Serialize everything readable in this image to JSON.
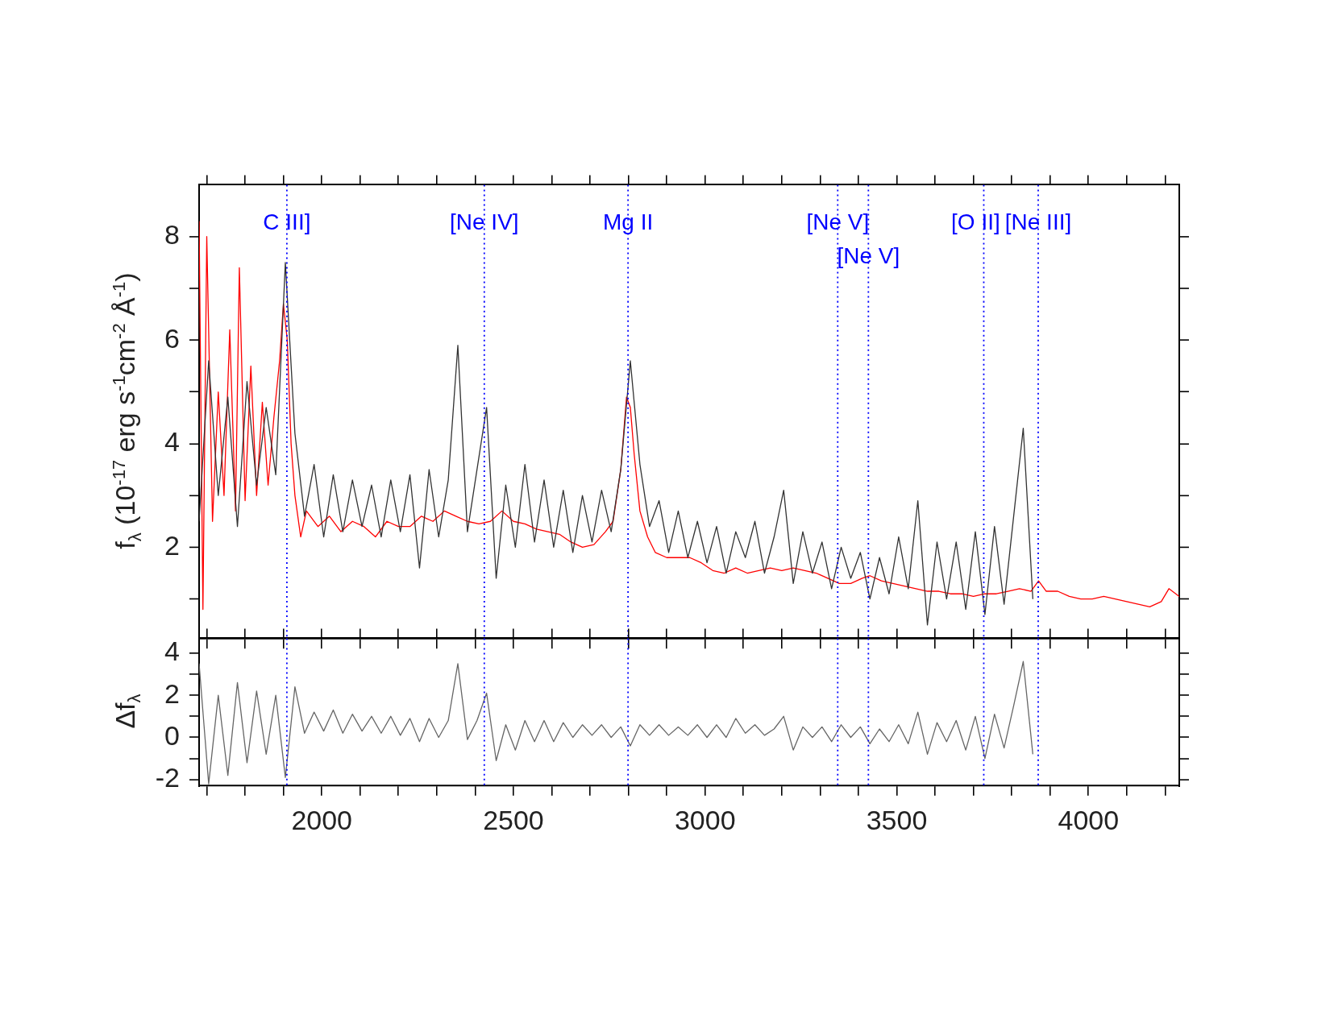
{
  "chart_data": [
    {
      "type": "line",
      "ylabel": "f$_{λ}$ (10$^{-17}$ erg s$^{-1}$cm$^{-2}$ Å$^{-1}$)",
      "xlim": [
        1680,
        4237
      ],
      "ylim": [
        0.23,
        9
      ],
      "xticks": [
        {
          "value": 1700,
          "label": null
        },
        {
          "value": 1800,
          "label": null
        },
        {
          "value": 1900,
          "label": null
        },
        2000,
        {
          "value": 2100,
          "label": null
        },
        {
          "value": 2200,
          "label": null
        },
        {
          "value": 2300,
          "label": null
        },
        {
          "value": 2400,
          "label": null
        },
        2500,
        {
          "value": 2600,
          "label": null
        },
        {
          "value": 2700,
          "label": null
        },
        {
          "value": 2800,
          "label": null
        },
        {
          "value": 2900,
          "label": null
        },
        3000,
        {
          "value": 3100,
          "label": null
        },
        {
          "value": 3200,
          "label": null
        },
        {
          "value": 3300,
          "label": null
        },
        {
          "value": 3400,
          "label": null
        },
        3500,
        {
          "value": 3600,
          "label": null
        },
        {
          "value": 3700,
          "label": null
        },
        {
          "value": 3800,
          "label": null
        },
        {
          "value": 3900,
          "label": null
        },
        4000,
        {
          "value": 4100,
          "label": null
        },
        {
          "value": 4200,
          "label": null
        }
      ],
      "yticks": [
        {
          "value": 1,
          "label": null
        },
        2,
        {
          "value": 3,
          "label": null
        },
        4,
        {
          "value": 5,
          "label": null
        },
        6,
        {
          "value": 7,
          "label": null
        },
        8
      ],
      "tick_labels": "y",
      "line_style": "solid",
      "series": [
        {
          "color": "#333333",
          "x": [
            1680,
            1705,
            1730,
            1755,
            1780,
            1805,
            1830,
            1855,
            1880,
            1905,
            1930,
            1955,
            1980,
            2005,
            2030,
            2055,
            2080,
            2105,
            2130,
            2155,
            2180,
            2205,
            2230,
            2255,
            2280,
            2305,
            2330,
            2355,
            2380,
            2405,
            2430,
            2455,
            2480,
            2505,
            2530,
            2555,
            2580,
            2605,
            2630,
            2655,
            2680,
            2705,
            2730,
            2755,
            2780,
            2805,
            2830,
            2855,
            2880,
            2905,
            2930,
            2955,
            2980,
            3005,
            3030,
            3055,
            3080,
            3105,
            3130,
            3155,
            3180,
            3205,
            3230,
            3255,
            3280,
            3305,
            3330,
            3355,
            3380,
            3405,
            3430,
            3455,
            3480,
            3505,
            3530,
            3555,
            3580,
            3605,
            3630,
            3655,
            3680,
            3705,
            3730,
            3755,
            3780,
            3805,
            3830,
            3855
          ],
          "values": [
            2.5,
            5.6,
            3.0,
            4.9,
            2.4,
            5.2,
            3.2,
            4.7,
            3.4,
            7.5,
            4.2,
            2.6,
            3.6,
            2.2,
            3.4,
            2.3,
            3.3,
            2.4,
            3.2,
            2.2,
            3.3,
            2.3,
            3.4,
            1.6,
            3.5,
            2.2,
            3.3,
            5.9,
            2.3,
            3.5,
            4.7,
            1.4,
            3.2,
            2.0,
            3.6,
            2.1,
            3.3,
            2.0,
            3.1,
            1.9,
            3.0,
            2.1,
            3.1,
            2.3,
            3.5,
            5.6,
            3.6,
            2.4,
            2.9,
            1.9,
            2.7,
            1.8,
            2.5,
            1.7,
            2.4,
            1.5,
            2.3,
            1.8,
            2.5,
            1.5,
            2.2,
            3.1,
            1.3,
            2.3,
            1.5,
            2.1,
            1.2,
            2.0,
            1.4,
            1.9,
            1.0,
            1.8,
            1.1,
            2.2,
            1.2,
            2.9,
            0.5,
            2.1,
            1.0,
            2.1,
            0.8,
            2.3,
            0.7,
            2.4,
            0.9,
            2.6,
            4.3,
            1.0
          ]
        },
        {
          "color": "#ff0000",
          "x": [
            1680,
            1690,
            1700,
            1715,
            1730,
            1745,
            1760,
            1775,
            1785,
            1800,
            1815,
            1830,
            1845,
            1860,
            1875,
            1890,
            1900,
            1910,
            1920,
            1930,
            1945,
            1960,
            1990,
            2020,
            2050,
            2080,
            2110,
            2140,
            2170,
            2200,
            2230,
            2260,
            2290,
            2320,
            2350,
            2380,
            2410,
            2440,
            2470,
            2500,
            2530,
            2560,
            2590,
            2620,
            2650,
            2680,
            2710,
            2740,
            2760,
            2780,
            2795,
            2805,
            2815,
            2830,
            2850,
            2870,
            2900,
            2930,
            2960,
            2990,
            3020,
            3050,
            3080,
            3110,
            3140,
            3170,
            3200,
            3230,
            3260,
            3290,
            3320,
            3350,
            3380,
            3410,
            3430,
            3460,
            3490,
            3520,
            3550,
            3580,
            3610,
            3640,
            3670,
            3700,
            3730,
            3760,
            3790,
            3820,
            3850,
            3870,
            3890,
            3920,
            3950,
            3980,
            4010,
            4040,
            4070,
            4100,
            4130,
            4160,
            4190,
            4210,
            4237
          ],
          "values": [
            8.3,
            0.8,
            8.0,
            2.5,
            5.0,
            3.0,
            6.2,
            2.7,
            7.4,
            2.9,
            5.5,
            3.0,
            4.8,
            3.2,
            4.5,
            5.6,
            6.7,
            6.0,
            4.0,
            3.0,
            2.2,
            2.7,
            2.4,
            2.6,
            2.3,
            2.5,
            2.4,
            2.2,
            2.5,
            2.4,
            2.4,
            2.6,
            2.5,
            2.7,
            2.6,
            2.5,
            2.45,
            2.5,
            2.7,
            2.5,
            2.45,
            2.35,
            2.3,
            2.25,
            2.1,
            2.0,
            2.05,
            2.3,
            2.5,
            3.5,
            4.9,
            4.7,
            3.8,
            2.7,
            2.2,
            1.9,
            1.8,
            1.8,
            1.8,
            1.7,
            1.55,
            1.5,
            1.6,
            1.5,
            1.55,
            1.6,
            1.55,
            1.6,
            1.55,
            1.5,
            1.4,
            1.3,
            1.3,
            1.4,
            1.45,
            1.35,
            1.3,
            1.25,
            1.2,
            1.15,
            1.15,
            1.1,
            1.1,
            1.05,
            1.1,
            1.1,
            1.15,
            1.2,
            1.15,
            1.35,
            1.15,
            1.15,
            1.05,
            1.0,
            1.0,
            1.05,
            1.0,
            0.95,
            0.9,
            0.85,
            0.95,
            1.2,
            1.05
          ]
        }
      ],
      "ref_lines": [
        {
          "axis": "x",
          "value": 1909,
          "label": "C III]",
          "color": "#0000ff",
          "line_style": "dotted"
        },
        {
          "axis": "x",
          "value": 2424,
          "label": "[Ne IV]",
          "color": "#0000ff",
          "line_style": "dotted"
        },
        {
          "axis": "x",
          "value": 2799,
          "label": "Mg II",
          "color": "#0000ff",
          "line_style": "dotted"
        },
        {
          "axis": "x",
          "value": 3346,
          "label": "[Ne V]",
          "color": "#0000ff",
          "line_style": "dotted"
        },
        {
          "axis": "x",
          "value": 3426,
          "label": "[Ne V]",
          "color": "#0000ff",
          "line_style": "dotted"
        },
        {
          "axis": "x",
          "value": 3727,
          "label": "[O II]",
          "color": "#0000ff",
          "line_style": "dotted"
        },
        {
          "axis": "x",
          "value": 3869,
          "label": "[Ne III]",
          "color": "#0000ff",
          "line_style": "dotted"
        }
      ]
    },
    {
      "type": "line",
      "ylabel": "Δf$_{λ}$",
      "xlim": [
        1680,
        4237
      ],
      "ylim": [
        -2.3,
        4.7
      ],
      "xticks": [
        {
          "value": 1700,
          "label": null
        },
        {
          "value": 1800,
          "label": null
        },
        {
          "value": 1900,
          "label": null
        },
        2000,
        {
          "value": 2100,
          "label": null
        },
        {
          "value": 2200,
          "label": null
        },
        {
          "value": 2300,
          "label": null
        },
        {
          "value": 2400,
          "label": null
        },
        2500,
        {
          "value": 2600,
          "label": null
        },
        {
          "value": 2700,
          "label": null
        },
        {
          "value": 2800,
          "label": null
        },
        {
          "value": 2900,
          "label": null
        },
        3000,
        {
          "value": 3100,
          "label": null
        },
        {
          "value": 3200,
          "label": null
        },
        {
          "value": 3300,
          "label": null
        },
        {
          "value": 3400,
          "label": null
        },
        3500,
        {
          "value": 3600,
          "label": null
        },
        {
          "value": 3700,
          "label": null
        },
        {
          "value": 3800,
          "label": null
        },
        {
          "value": 3900,
          "label": null
        },
        4000,
        {
          "value": 4100,
          "label": null
        },
        {
          "value": 4200,
          "label": null
        }
      ],
      "yticks": [
        -2,
        {
          "value": -1,
          "label": null
        },
        0,
        {
          "value": 1,
          "label": null
        },
        2,
        {
          "value": 3,
          "label": null
        },
        4
      ],
      "line_style": "solid",
      "series": [
        {
          "color": "#666666",
          "x": [
            1680,
            1705,
            1730,
            1755,
            1780,
            1805,
            1830,
            1855,
            1880,
            1905,
            1930,
            1955,
            1980,
            2005,
            2030,
            2055,
            2080,
            2105,
            2130,
            2155,
            2180,
            2205,
            2230,
            2255,
            2280,
            2305,
            2330,
            2355,
            2380,
            2405,
            2430,
            2455,
            2480,
            2505,
            2530,
            2555,
            2580,
            2605,
            2630,
            2655,
            2680,
            2705,
            2730,
            2755,
            2780,
            2805,
            2830,
            2855,
            2880,
            2905,
            2930,
            2955,
            2980,
            3005,
            3030,
            3055,
            3080,
            3105,
            3130,
            3155,
            3180,
            3205,
            3230,
            3255,
            3280,
            3305,
            3330,
            3355,
            3380,
            3405,
            3430,
            3455,
            3480,
            3505,
            3530,
            3555,
            3580,
            3605,
            3630,
            3655,
            3680,
            3705,
            3730,
            3755,
            3780,
            3805,
            3830,
            3855
          ],
          "values": [
            3.5,
            -2.2,
            2.0,
            -1.8,
            2.6,
            -1.2,
            2.2,
            -0.8,
            2.0,
            -1.9,
            2.4,
            0.2,
            1.2,
            0.3,
            1.3,
            0.2,
            1.1,
            0.3,
            1.0,
            0.2,
            1.0,
            0.1,
            0.9,
            -0.2,
            0.9,
            0.0,
            0.8,
            3.5,
            -0.1,
            0.8,
            2.1,
            -1.1,
            0.6,
            -0.6,
            0.8,
            -0.2,
            0.8,
            -0.2,
            0.7,
            0.0,
            0.6,
            0.1,
            0.6,
            0.0,
            0.5,
            -0.4,
            0.6,
            0.1,
            0.6,
            0.1,
            0.5,
            0.1,
            0.6,
            0.0,
            0.6,
            0.0,
            0.9,
            0.2,
            0.6,
            0.1,
            0.4,
            1.0,
            -0.6,
            0.5,
            0.0,
            0.5,
            -0.2,
            0.6,
            0.0,
            0.5,
            -0.3,
            0.4,
            -0.2,
            0.6,
            -0.3,
            1.2,
            -0.8,
            0.7,
            -0.2,
            0.8,
            -0.6,
            1.0,
            -1.0,
            1.1,
            -0.5,
            1.5,
            3.6,
            -0.8
          ]
        }
      ],
      "ref_lines": [
        {
          "axis": "x",
          "value": 1909,
          "color": "#0000ff",
          "line_style": "dotted"
        },
        {
          "axis": "x",
          "value": 2424,
          "color": "#0000ff",
          "line_style": "dotted"
        },
        {
          "axis": "x",
          "value": 2799,
          "color": "#0000ff",
          "line_style": "dotted"
        },
        {
          "axis": "x",
          "value": 3346,
          "color": "#0000ff",
          "line_style": "dotted"
        },
        {
          "axis": "x",
          "value": 3426,
          "color": "#0000ff",
          "line_style": "dotted"
        },
        {
          "axis": "x",
          "value": 3727,
          "color": "#0000ff",
          "line_style": "dotted"
        },
        {
          "axis": "x",
          "value": 3869,
          "color": "#0000ff",
          "line_style": "dotted"
        }
      ]
    }
  ]
}
